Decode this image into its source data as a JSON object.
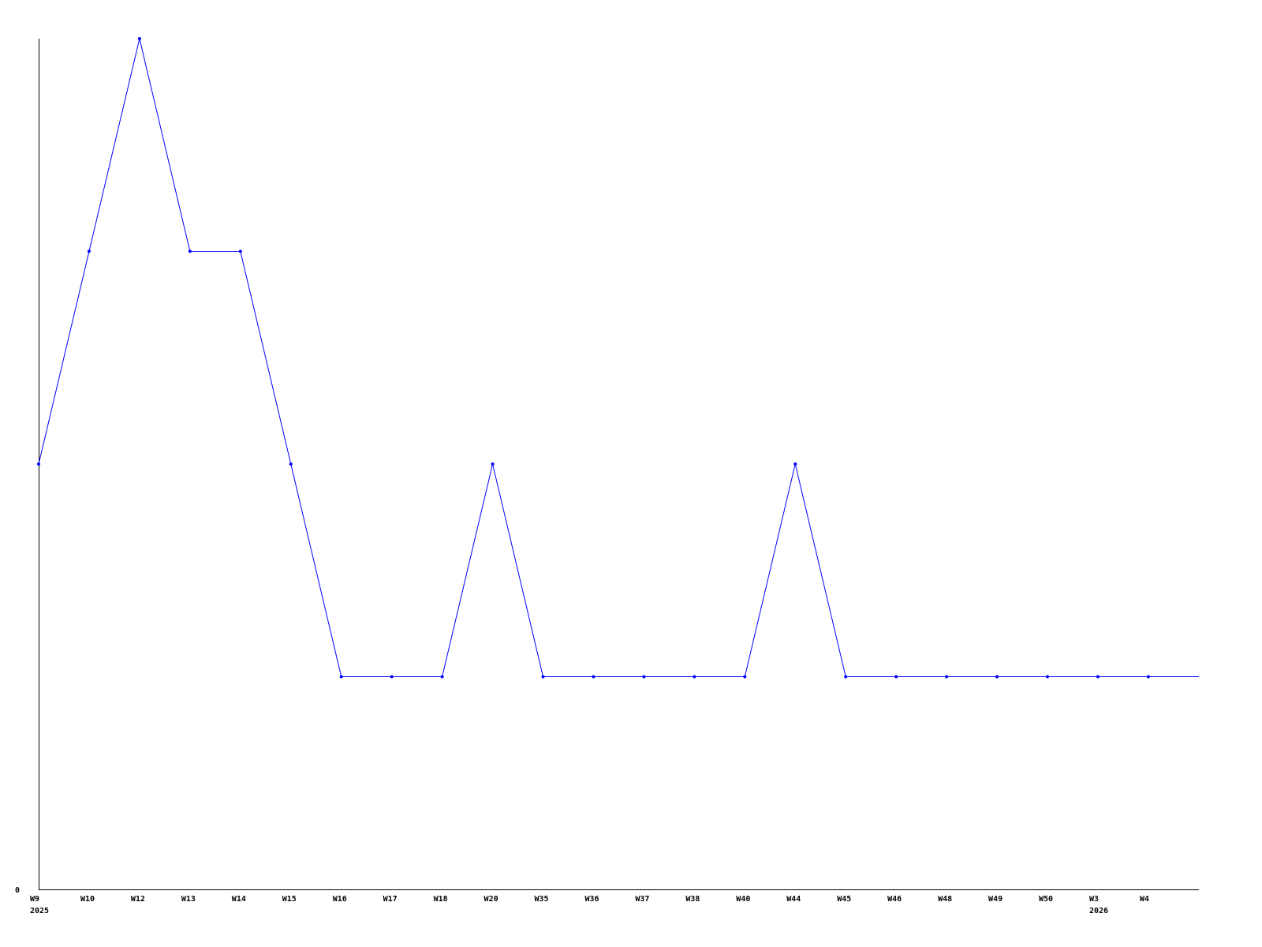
{
  "chart_data": {
    "type": "line",
    "title": "",
    "xlabel": "",
    "ylabel": "",
    "categories": [
      "W9",
      "W10",
      "W12",
      "W13",
      "W14",
      "W15",
      "W16",
      "W17",
      "W18",
      "W20",
      "W35",
      "W36",
      "W37",
      "W38",
      "W40",
      "W44",
      "W45",
      "W46",
      "W48",
      "W49",
      "W50",
      "W3",
      "W4"
    ],
    "year_labels": [
      {
        "at": "W9",
        "text": "2025"
      },
      {
        "at": "W3",
        "text": "2026"
      }
    ],
    "series": [
      {
        "values": [
          2,
          3,
          4,
          3,
          3,
          2,
          1,
          1,
          1,
          2,
          1,
          1,
          1,
          1,
          1,
          2,
          1,
          1,
          1,
          1,
          1,
          1,
          1
        ],
        "color": "#0000ff"
      }
    ],
    "y_tick_labels": [
      "0"
    ],
    "ylim": [
      0,
      4
    ],
    "grid": false,
    "legend": "none",
    "axis_color": "#000000"
  }
}
